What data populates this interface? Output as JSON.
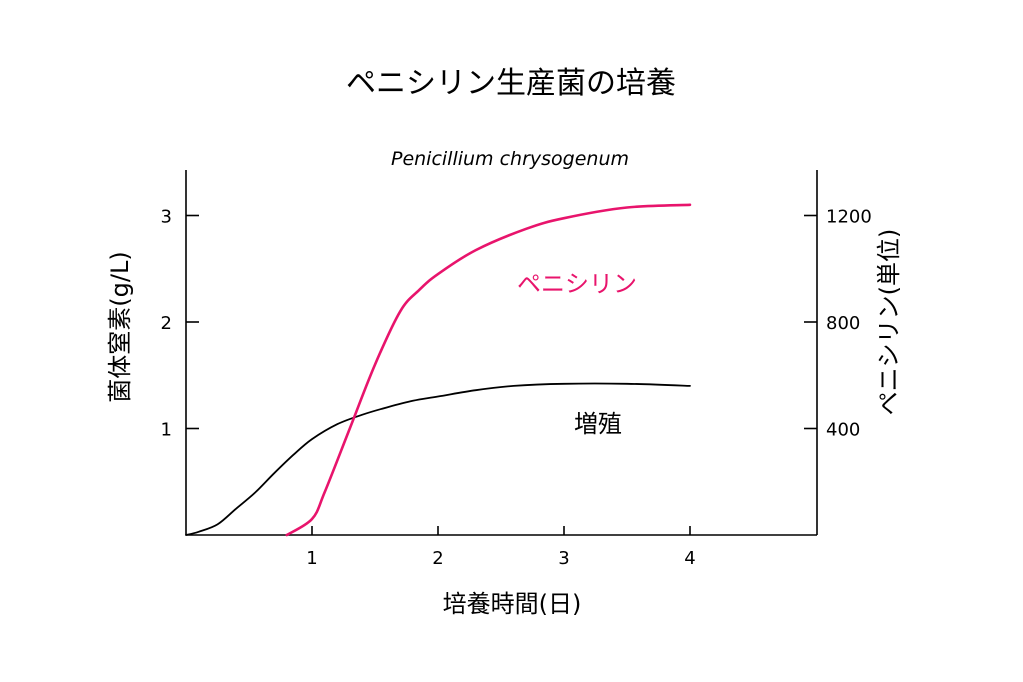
{
  "chart_data": {
    "type": "line",
    "title": "ペニシリン生産菌の培養",
    "subtitle": "Penicillium chrysogenum",
    "xlabel": "培養時間(日)",
    "ylabel_left": "菌体窒素(g/L)",
    "ylabel_right": "ペニシリン(単位)",
    "xlim": [
      0,
      5
    ],
    "ylim_left": [
      0,
      3.4
    ],
    "ylim_right": [
      0,
      1360
    ],
    "xticks": [
      1,
      2,
      3,
      4
    ],
    "yticks_left": [
      1,
      2,
      3
    ],
    "yticks_right": [
      400,
      800,
      1200
    ],
    "grid": false,
    "legend": "none",
    "series": [
      {
        "name": "増殖",
        "axis": "left",
        "color": "#000000",
        "x": [
          0,
          0.1,
          0.25,
          0.4,
          0.55,
          0.7,
          0.85,
          1.0,
          1.2,
          1.4,
          1.6,
          1.8,
          2.0,
          2.3,
          2.6,
          3.0,
          3.5,
          4.0
        ],
        "y": [
          0,
          0.03,
          0.1,
          0.25,
          0.4,
          0.58,
          0.75,
          0.9,
          1.04,
          1.13,
          1.2,
          1.26,
          1.3,
          1.36,
          1.4,
          1.42,
          1.42,
          1.4
        ]
      },
      {
        "name": "ペニシリン",
        "axis": "right",
        "color": "#e8146c",
        "x": [
          0.8,
          1.0,
          1.1,
          1.3,
          1.5,
          1.7,
          1.85,
          2.0,
          2.3,
          2.7,
          3.0,
          3.5,
          4.0
        ],
        "y": [
          0,
          60,
          160,
          400,
          640,
          840,
          920,
          980,
          1070,
          1150,
          1190,
          1230,
          1240
        ]
      }
    ]
  }
}
